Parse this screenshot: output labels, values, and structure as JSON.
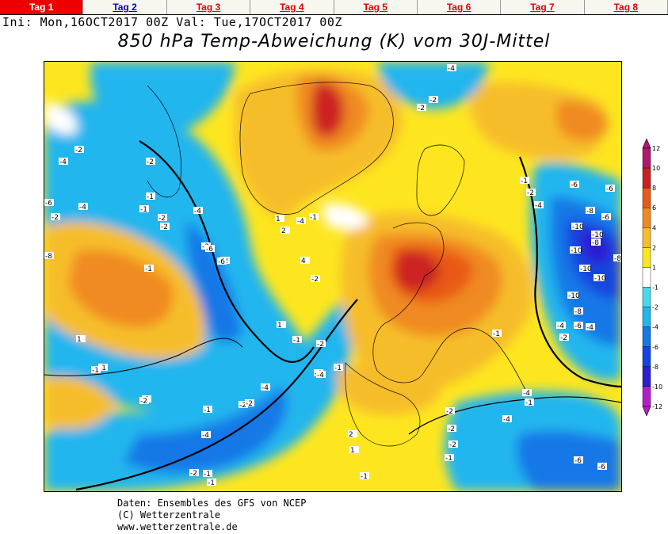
{
  "tabs": [
    {
      "label": "Tag 1",
      "active": true
    },
    {
      "label": "Tag 2",
      "active": false
    },
    {
      "label": "Tag 3",
      "active": false
    },
    {
      "label": "Tag 4",
      "active": false
    },
    {
      "label": "Tag 5",
      "active": false
    },
    {
      "label": "Tag 6",
      "active": false
    },
    {
      "label": "Tag 7",
      "active": false
    },
    {
      "label": "Tag 8",
      "active": false
    }
  ],
  "header": {
    "init_line": "Ini: Mon,16OCT2017 00Z Val: Tue,17OCT2017 00Z",
    "title": "850 hPa Temp-Abweichung (K) vom 30J-Mittel"
  },
  "legend": {
    "levels": [
      12,
      10,
      8,
      6,
      4,
      2,
      1,
      -1,
      -2,
      -4,
      -6,
      -8,
      -10,
      -12
    ],
    "colors": [
      "#b0186e",
      "#cc2020",
      "#e85a18",
      "#f08a20",
      "#f6bd2c",
      "#fde620",
      "#ffffff",
      "#4ad8ee",
      "#22b6ee",
      "#1478e6",
      "#1444e0",
      "#2c1ed2",
      "#b41ec8"
    ]
  },
  "map_labels": [
    "-2",
    "-4",
    "-2",
    "-6",
    "-4",
    "-2",
    "-1",
    "-1",
    "-2",
    "-4",
    "-2",
    "1",
    "-1",
    "2",
    "-4",
    "-2",
    "-2",
    "4",
    "1",
    "-1",
    "-2",
    "-1",
    "-4",
    "-6",
    "-6",
    "-8",
    "-1",
    "-2",
    "-1",
    "-2",
    "1",
    "-1",
    "-2",
    "-1",
    "-4",
    "-4",
    "-2",
    "-1",
    "-2",
    "-4",
    "-1",
    "-2",
    "-6",
    "-2",
    "-1",
    "-2",
    "-4",
    "-2",
    "-4",
    "-6",
    "-8",
    "-6",
    "-10",
    "-8",
    "-10",
    "-10",
    "-8",
    "-10",
    "-10",
    "-10",
    "-8",
    "-4",
    "-6",
    "-2",
    "-1",
    "2",
    "1",
    "-2",
    "-1",
    "-2",
    "-4",
    "-6",
    "-6",
    "-4",
    "-2",
    "-1",
    "-1",
    "-4"
  ],
  "footer": {
    "line1": "Daten: Ensembles des GFS von NCEP",
    "line2": "(C) Wetterzentrale",
    "line3": "www.wetterzentrale.de"
  }
}
